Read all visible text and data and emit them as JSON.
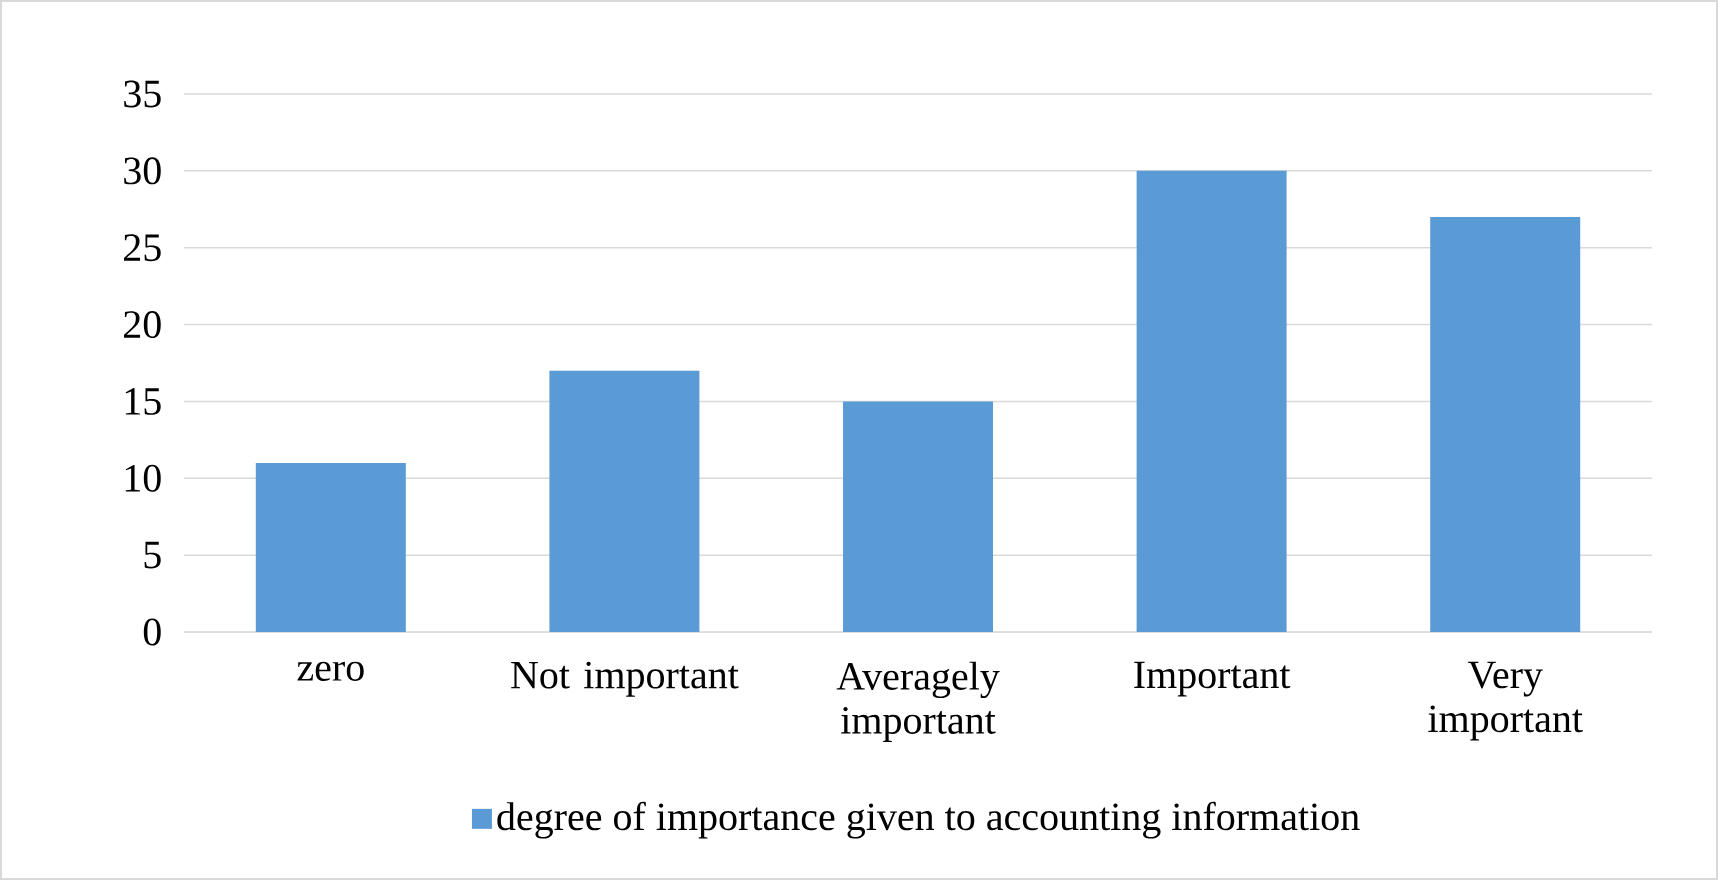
{
  "chart_data": {
    "type": "bar",
    "categories": [
      "zero",
      "Not important",
      "Averagely important",
      "Important",
      "Very important"
    ],
    "series": [
      {
        "name": "degree of importance given to accounting information",
        "color": "#5b9bd5",
        "values": [
          11,
          17,
          15,
          30,
          27
        ]
      }
    ],
    "ylim": [
      0,
      35
    ],
    "yticks": [
      0,
      5,
      10,
      15,
      20,
      25,
      30,
      35
    ],
    "grid": "y",
    "legend": "bottom"
  }
}
